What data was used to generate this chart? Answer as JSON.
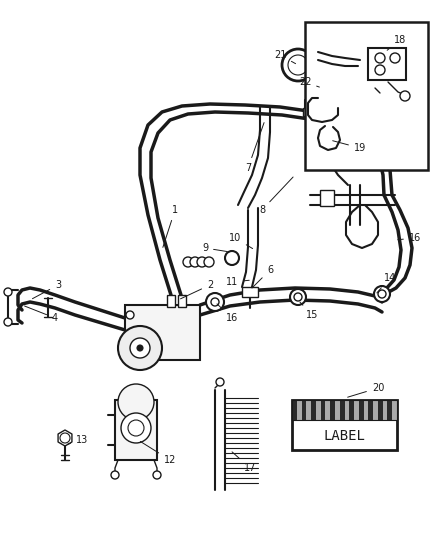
{
  "bg_color": "#ffffff",
  "line_color": "#1a1a1a",
  "fig_width": 4.38,
  "fig_height": 5.33,
  "dpi": 100
}
